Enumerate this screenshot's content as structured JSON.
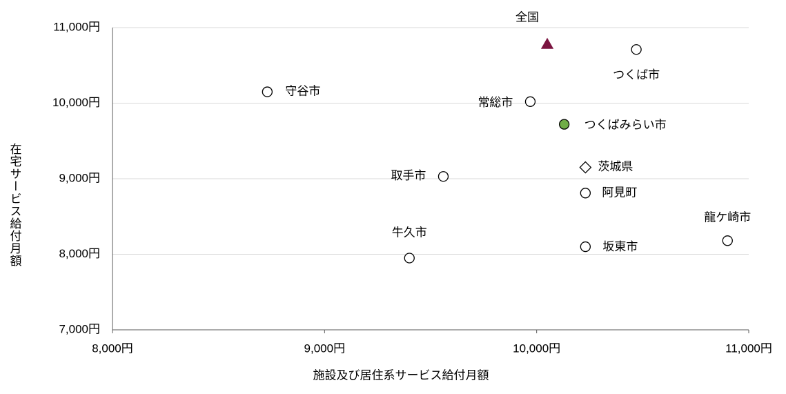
{
  "chart_data": {
    "type": "scatter",
    "xlabel": "施設及び居住系サービス給付月額",
    "ylabel": "在宅サービス給付月額",
    "xlim": [
      8000,
      11000
    ],
    "ylim": [
      7000,
      11000
    ],
    "xticks": [
      {
        "value": 8000,
        "label": "8,000円"
      },
      {
        "value": 9000,
        "label": "9,000円"
      },
      {
        "value": 10000,
        "label": "10,000円"
      },
      {
        "value": 11000,
        "label": "11,000円"
      }
    ],
    "yticks": [
      {
        "value": 7000,
        "label": "7,000円"
      },
      {
        "value": 8000,
        "label": "8,000円"
      },
      {
        "value": 9000,
        "label": "9,000円"
      },
      {
        "value": 10000,
        "label": "10,000円"
      },
      {
        "value": 11000,
        "label": "11,000円"
      }
    ],
    "grid": true,
    "points": [
      {
        "label": "全国",
        "x": 10050,
        "y": 10780,
        "marker": "triangle",
        "color": "#7b1440"
      },
      {
        "label": "つくば市",
        "x": 10470,
        "y": 10710,
        "marker": "circle",
        "color": "#ffffff"
      },
      {
        "label": "守谷市",
        "x": 8730,
        "y": 10150,
        "marker": "circle",
        "color": "#ffffff"
      },
      {
        "label": "常総市",
        "x": 9970,
        "y": 10020,
        "marker": "circle",
        "color": "#ffffff"
      },
      {
        "label": "つくばみらい市",
        "x": 10130,
        "y": 9720,
        "marker": "circle",
        "color": "#70ad47"
      },
      {
        "label": "茨城県",
        "x": 10230,
        "y": 9150,
        "marker": "diamond",
        "color": "#ffffff"
      },
      {
        "label": "取手市",
        "x": 9560,
        "y": 9030,
        "marker": "circle",
        "color": "#ffffff"
      },
      {
        "label": "阿見町",
        "x": 10230,
        "y": 8810,
        "marker": "circle",
        "color": "#ffffff"
      },
      {
        "label": "龍ケ崎市",
        "x": 10900,
        "y": 8180,
        "marker": "circle",
        "color": "#ffffff"
      },
      {
        "label": "坂東市",
        "x": 10230,
        "y": 8100,
        "marker": "circle",
        "color": "#ffffff"
      },
      {
        "label": "牛久市",
        "x": 9400,
        "y": 7950,
        "marker": "circle",
        "color": "#ffffff"
      }
    ]
  }
}
